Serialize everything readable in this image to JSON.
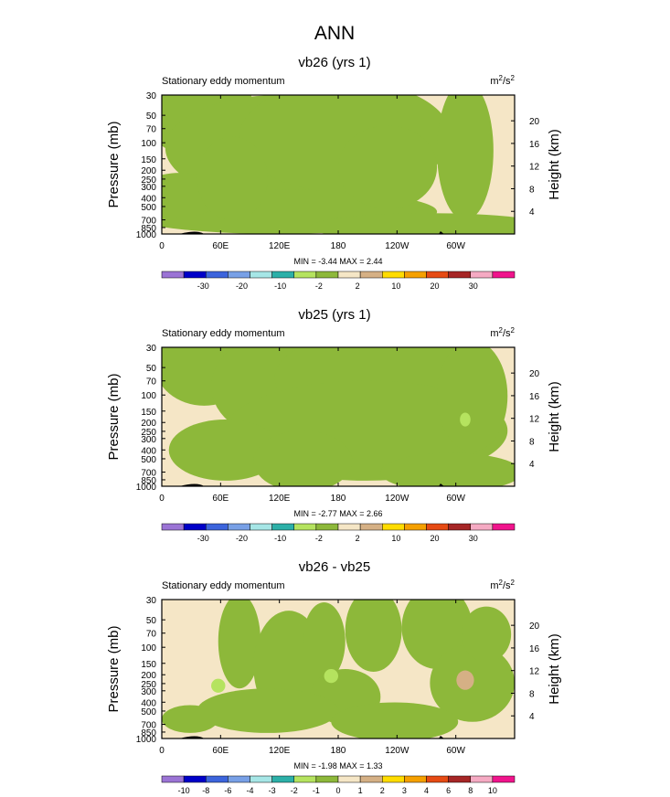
{
  "page_title": "ANN",
  "colors": {
    "green": "#8DB83A",
    "beige": "#F5E6C6",
    "lightgreen": "#B5E35F",
    "tan": "#D5B085",
    "topo": "#000000"
  },
  "chart_data": [
    {
      "type": "contour",
      "title": "vb26 (yrs 1)",
      "subtitle_left": "Stationary eddy momentum",
      "units_base": "m",
      "units_exp1": "2",
      "units_mid": "/s",
      "units_exp2": "2",
      "ylabel": "Pressure (mb)",
      "ylabel_right": "Height (km)",
      "x_ticks": [
        "0",
        "60E",
        "120E",
        "180",
        "120W",
        "60W"
      ],
      "x_tick_lon": [
        0,
        60,
        120,
        180,
        240,
        300
      ],
      "xlim": [
        0,
        360
      ],
      "y_ticks": [
        "30",
        "50",
        "70",
        "100",
        "150",
        "200",
        "250",
        "300",
        "400",
        "500",
        "700",
        "850",
        "1000"
      ],
      "y_tick_values": [
        30,
        50,
        70,
        100,
        150,
        200,
        250,
        300,
        400,
        500,
        700,
        850,
        1000
      ],
      "ylim": [
        1000,
        30
      ],
      "height_ticks": [
        "20",
        "16",
        "12",
        "8",
        "4"
      ],
      "height_values": [
        20,
        16,
        12,
        8,
        4
      ],
      "stats": "MIN = -3.44  MAX =  2.44",
      "colorbar_labels": [
        "-30",
        "-20",
        "-10",
        "-2",
        "2",
        "10",
        "20",
        "30"
      ],
      "colorbar_colors": [
        "#9B74D5",
        "#0000C8",
        "#3C64DC",
        "#78A0E6",
        "#A6E6E6",
        "#2CB0A8",
        "#B5E35F",
        "#8DB83A",
        "#F5E6C6",
        "#D5B085",
        "#FFDC00",
        "#F5A000",
        "#E64B14",
        "#A62626",
        "#F5AAC3",
        "#F0148C"
      ]
    },
    {
      "type": "contour",
      "title": "vb25 (yrs 1)",
      "subtitle_left": "Stationary eddy momentum",
      "units_base": "m",
      "units_exp1": "2",
      "units_mid": "/s",
      "units_exp2": "2",
      "ylabel": "Pressure (mb)",
      "ylabel_right": "Height (km)",
      "x_ticks": [
        "0",
        "60E",
        "120E",
        "180",
        "120W",
        "60W"
      ],
      "x_tick_lon": [
        0,
        60,
        120,
        180,
        240,
        300
      ],
      "xlim": [
        0,
        360
      ],
      "y_ticks": [
        "30",
        "50",
        "70",
        "100",
        "150",
        "200",
        "250",
        "300",
        "400",
        "500",
        "700",
        "850",
        "1000"
      ],
      "y_tick_values": [
        30,
        50,
        70,
        100,
        150,
        200,
        250,
        300,
        400,
        500,
        700,
        850,
        1000
      ],
      "ylim": [
        1000,
        30
      ],
      "height_ticks": [
        "20",
        "16",
        "12",
        "8",
        "4"
      ],
      "height_values": [
        20,
        16,
        12,
        8,
        4
      ],
      "stats": "MIN = -2.77  MAX =  2.66",
      "colorbar_labels": [
        "-30",
        "-20",
        "-10",
        "-2",
        "2",
        "10",
        "20",
        "30"
      ],
      "colorbar_colors": [
        "#9B74D5",
        "#0000C8",
        "#3C64DC",
        "#78A0E6",
        "#A6E6E6",
        "#2CB0A8",
        "#B5E35F",
        "#8DB83A",
        "#F5E6C6",
        "#D5B085",
        "#FFDC00",
        "#F5A000",
        "#E64B14",
        "#A62626",
        "#F5AAC3",
        "#F0148C"
      ]
    },
    {
      "type": "contour",
      "title": "vb26 - vb25",
      "subtitle_left": "Stationary eddy momentum",
      "units_base": "m",
      "units_exp1": "2",
      "units_mid": "/s",
      "units_exp2": "2",
      "ylabel": "Pressure (mb)",
      "ylabel_right": "Height (km)",
      "x_ticks": [
        "0",
        "60E",
        "120E",
        "180",
        "120W",
        "60W"
      ],
      "x_tick_lon": [
        0,
        60,
        120,
        180,
        240,
        300
      ],
      "xlim": [
        0,
        360
      ],
      "y_ticks": [
        "30",
        "50",
        "70",
        "100",
        "150",
        "200",
        "250",
        "300",
        "400",
        "500",
        "700",
        "850",
        "1000"
      ],
      "y_tick_values": [
        30,
        50,
        70,
        100,
        150,
        200,
        250,
        300,
        400,
        500,
        700,
        850,
        1000
      ],
      "ylim": [
        1000,
        30
      ],
      "height_ticks": [
        "20",
        "16",
        "12",
        "8",
        "4"
      ],
      "height_values": [
        20,
        16,
        12,
        8,
        4
      ],
      "stats": "MIN = -1.98  MAX =  1.33",
      "colorbar_labels": [
        "-10",
        "-8",
        "-6",
        "-4",
        "-3",
        "-2",
        "-1",
        "0",
        "1",
        "2",
        "3",
        "4",
        "6",
        "8",
        "10"
      ],
      "colorbar_colors": [
        "#9B74D5",
        "#0000C8",
        "#3C64DC",
        "#78A0E6",
        "#A6E6E6",
        "#2CB0A8",
        "#B5E35F",
        "#8DB83A",
        "#F5E6C6",
        "#D5B085",
        "#FFDC00",
        "#F5A000",
        "#E64B14",
        "#A62626",
        "#F5AAC3",
        "#F0148C"
      ]
    }
  ]
}
